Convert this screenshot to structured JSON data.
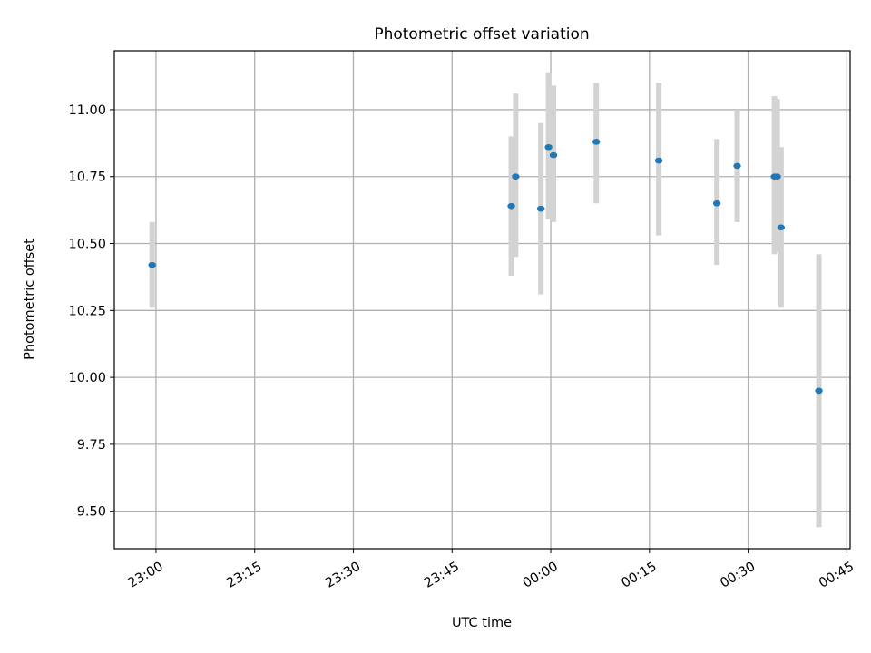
{
  "chart_data": {
    "type": "scatter",
    "title": "Photometric offset variation",
    "xlabel": "UTC time",
    "ylabel": "Photometric offset",
    "x_unit": "UTC time",
    "xlim": [
      "22:53:40",
      "00:45:30"
    ],
    "ylim": [
      9.36,
      11.22
    ],
    "x_ticks": [
      "23:00",
      "23:15",
      "23:30",
      "23:45",
      "00:00",
      "00:15",
      "00:30",
      "00:45"
    ],
    "y_ticks": [
      "9.50",
      "9.75",
      "10.00",
      "10.25",
      "10.50",
      "10.75",
      "11.00"
    ],
    "grid": true,
    "point_color": "#1f77b4",
    "errorbar_color": "#d3d3d3",
    "points": [
      {
        "x": "22:59:25",
        "y": 10.42,
        "ymin": 10.26,
        "ymax": 10.58
      },
      {
        "x": "23:54:00",
        "y": 10.64,
        "ymin": 10.38,
        "ymax": 10.9
      },
      {
        "x": "23:54:40",
        "y": 10.75,
        "ymin": 10.45,
        "ymax": 11.06
      },
      {
        "x": "23:58:30",
        "y": 10.63,
        "ymin": 10.31,
        "ymax": 10.95
      },
      {
        "x": "23:59:40",
        "y": 10.86,
        "ymin": 10.59,
        "ymax": 11.14
      },
      {
        "x": "00:00:25",
        "y": 10.83,
        "ymin": 10.58,
        "ymax": 11.09
      },
      {
        "x": "00:06:55",
        "y": 10.88,
        "ymin": 10.65,
        "ymax": 11.1
      },
      {
        "x": "00:16:25",
        "y": 10.81,
        "ymin": 10.53,
        "ymax": 11.1
      },
      {
        "x": "00:25:15",
        "y": 10.65,
        "ymin": 10.42,
        "ymax": 10.89
      },
      {
        "x": "00:28:20",
        "y": 10.79,
        "ymin": 10.58,
        "ymax": 11.0
      },
      {
        "x": "00:34:00",
        "y": 10.75,
        "ymin": 10.46,
        "ymax": 11.05
      },
      {
        "x": "00:34:25",
        "y": 10.75,
        "ymin": 10.47,
        "ymax": 11.04
      },
      {
        "x": "00:35:00",
        "y": 10.56,
        "ymin": 10.26,
        "ymax": 10.86
      },
      {
        "x": "00:40:45",
        "y": 9.95,
        "ymin": 9.44,
        "ymax": 10.46
      }
    ]
  }
}
